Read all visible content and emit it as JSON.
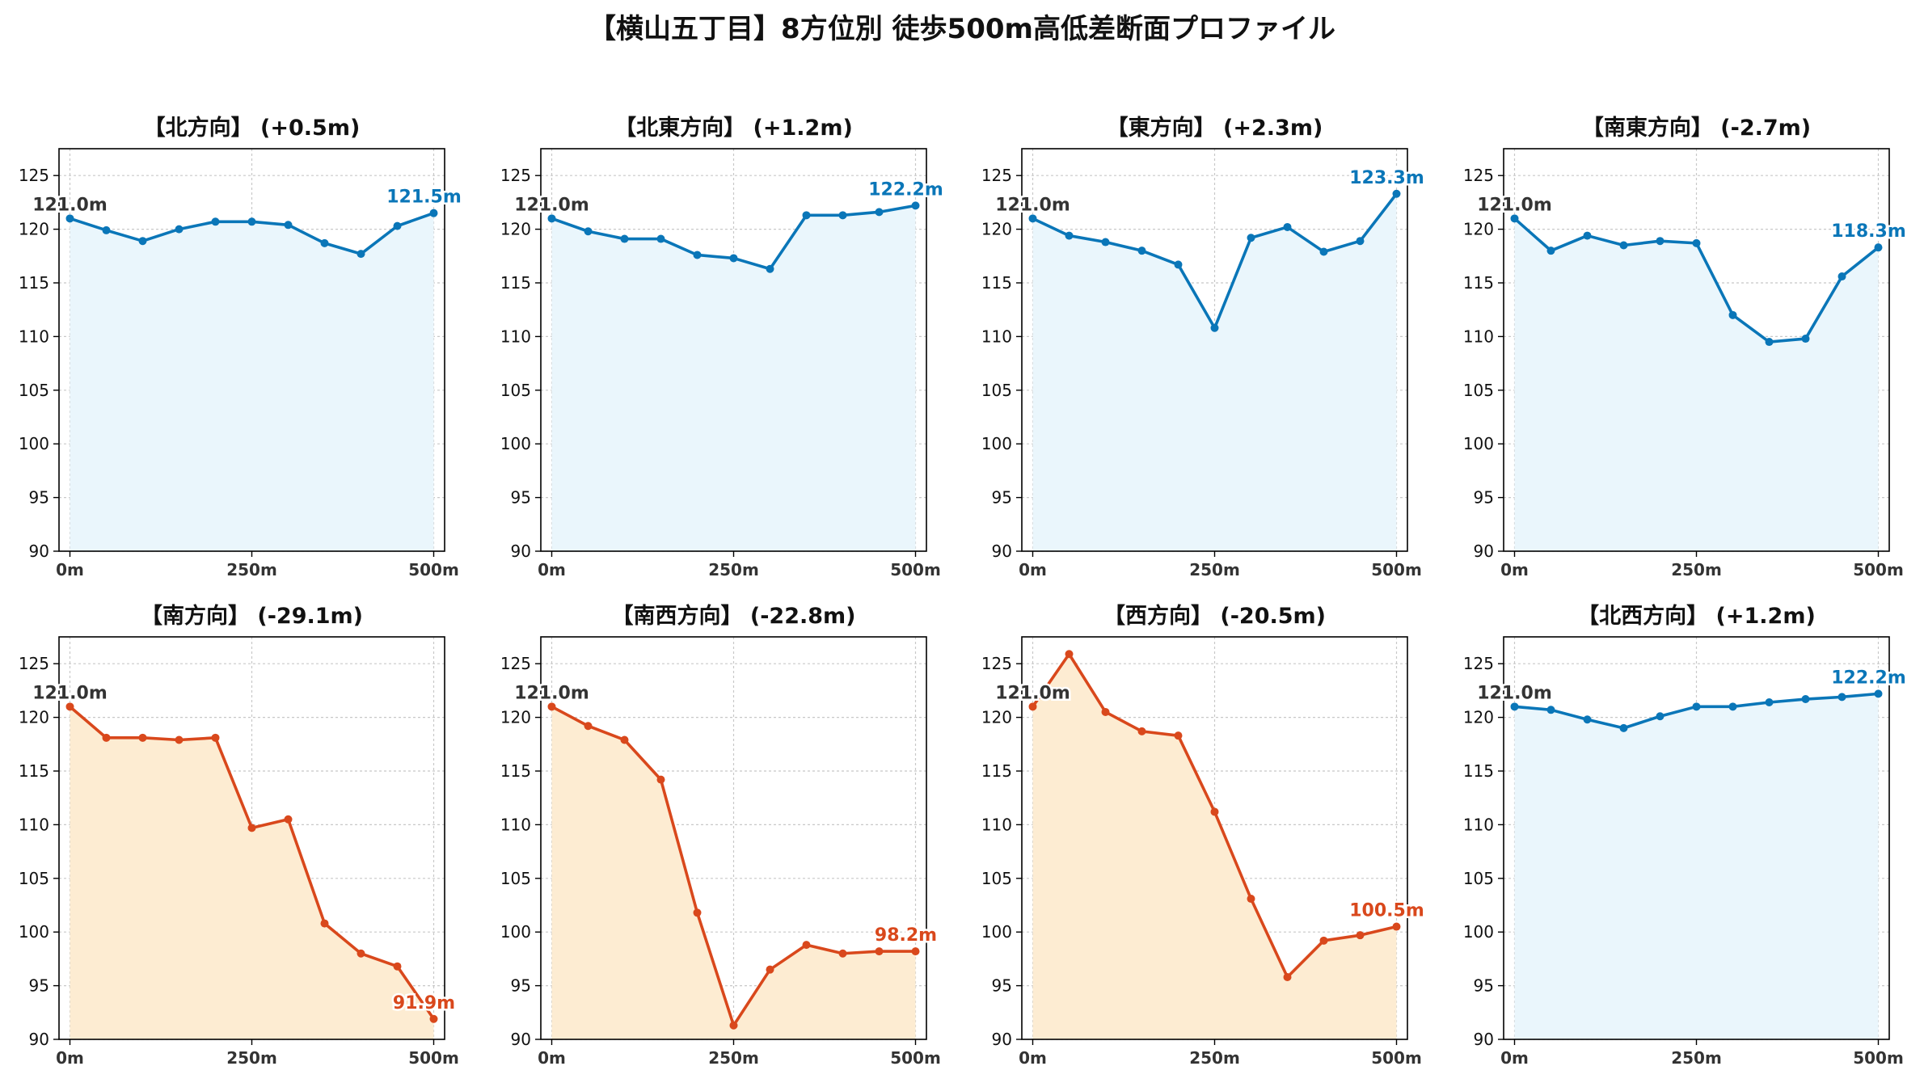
{
  "title": "【横山五丁目】8方位別 徒歩500m高低差断面プロファイル",
  "colors": {
    "up_line": "#0a76b8",
    "up_fill": "#eaf6fc",
    "down_line": "#d9481c",
    "down_fill": "#fdecd2",
    "start_label": "#333333",
    "grid": "#c8c8c8"
  },
  "chart_data": [
    {
      "type": "area",
      "title": "【北方向】 (+0.5m)",
      "trend": "up",
      "x": [
        0,
        50,
        100,
        150,
        200,
        250,
        300,
        350,
        400,
        450,
        500
      ],
      "values": [
        121.0,
        119.9,
        118.9,
        120.0,
        120.7,
        120.7,
        120.4,
        118.7,
        117.7,
        120.3,
        121.5
      ],
      "start_label": "121.0m",
      "end_label": "121.5m",
      "ylim": [
        90,
        127.5
      ],
      "xlim": [
        -15,
        515
      ],
      "yticks": [
        90,
        95,
        100,
        105,
        110,
        115,
        120,
        125
      ],
      "xticks": [
        0,
        250,
        500
      ],
      "xtick_labels": [
        "0m",
        "250m",
        "500m"
      ],
      "grid": true
    },
    {
      "type": "area",
      "title": "【北東方向】 (+1.2m)",
      "trend": "up",
      "x": [
        0,
        50,
        100,
        150,
        200,
        250,
        300,
        350,
        400,
        450,
        500
      ],
      "values": [
        121.0,
        119.8,
        119.1,
        119.1,
        117.6,
        117.3,
        116.3,
        121.3,
        121.3,
        121.6,
        122.2
      ],
      "start_label": "121.0m",
      "end_label": "122.2m",
      "ylim": [
        90,
        127.5
      ],
      "xlim": [
        -15,
        515
      ],
      "yticks": [
        90,
        95,
        100,
        105,
        110,
        115,
        120,
        125
      ],
      "xticks": [
        0,
        250,
        500
      ],
      "xtick_labels": [
        "0m",
        "250m",
        "500m"
      ],
      "grid": true
    },
    {
      "type": "area",
      "title": "【東方向】 (+2.3m)",
      "trend": "up",
      "x": [
        0,
        50,
        100,
        150,
        200,
        250,
        300,
        350,
        400,
        450,
        500
      ],
      "values": [
        121.0,
        119.4,
        118.8,
        118.0,
        116.7,
        110.8,
        119.2,
        120.2,
        117.9,
        118.9,
        123.3
      ],
      "start_label": "121.0m",
      "end_label": "123.3m",
      "ylim": [
        90,
        127.5
      ],
      "xlim": [
        -15,
        515
      ],
      "yticks": [
        90,
        95,
        100,
        105,
        110,
        115,
        120,
        125
      ],
      "xticks": [
        0,
        250,
        500
      ],
      "xtick_labels": [
        "0m",
        "250m",
        "500m"
      ],
      "grid": true
    },
    {
      "type": "area",
      "title": "【南東方向】 (-2.7m)",
      "trend": "up",
      "x": [
        0,
        50,
        100,
        150,
        200,
        250,
        300,
        350,
        400,
        450,
        500
      ],
      "values": [
        121.0,
        118.0,
        119.4,
        118.5,
        118.9,
        118.7,
        112.0,
        109.5,
        109.8,
        115.6,
        118.3
      ],
      "start_label": "121.0m",
      "end_label": "118.3m",
      "ylim": [
        90,
        127.5
      ],
      "xlim": [
        -15,
        515
      ],
      "yticks": [
        90,
        95,
        100,
        105,
        110,
        115,
        120,
        125
      ],
      "xticks": [
        0,
        250,
        500
      ],
      "xtick_labels": [
        "0m",
        "250m",
        "500m"
      ],
      "grid": true
    },
    {
      "type": "area",
      "title": "【南方向】 (-29.1m)",
      "trend": "down",
      "x": [
        0,
        50,
        100,
        150,
        200,
        250,
        300,
        350,
        400,
        450,
        500
      ],
      "values": [
        121.0,
        118.1,
        118.1,
        117.9,
        118.1,
        109.7,
        110.5,
        100.8,
        98.0,
        96.8,
        91.9
      ],
      "start_label": "121.0m",
      "end_label": "91.9m",
      "ylim": [
        90,
        127.5
      ],
      "xlim": [
        -15,
        515
      ],
      "yticks": [
        90,
        95,
        100,
        105,
        110,
        115,
        120,
        125
      ],
      "xticks": [
        0,
        250,
        500
      ],
      "xtick_labels": [
        "0m",
        "250m",
        "500m"
      ],
      "grid": true
    },
    {
      "type": "area",
      "title": "【南西方向】 (-22.8m)",
      "trend": "down",
      "x": [
        0,
        50,
        100,
        150,
        200,
        250,
        300,
        350,
        400,
        450,
        500
      ],
      "values": [
        121.0,
        119.2,
        117.9,
        114.2,
        101.8,
        91.3,
        96.5,
        98.8,
        98.0,
        98.2,
        98.2
      ],
      "start_label": "121.0m",
      "end_label": "98.2m",
      "ylim": [
        90,
        127.5
      ],
      "xlim": [
        -15,
        515
      ],
      "yticks": [
        90,
        95,
        100,
        105,
        110,
        115,
        120,
        125
      ],
      "xticks": [
        0,
        250,
        500
      ],
      "xtick_labels": [
        "0m",
        "250m",
        "500m"
      ],
      "grid": true
    },
    {
      "type": "area",
      "title": "【西方向】 (-20.5m)",
      "trend": "down",
      "x": [
        0,
        50,
        100,
        150,
        200,
        250,
        300,
        350,
        400,
        450,
        500
      ],
      "values": [
        121.0,
        125.9,
        120.5,
        118.7,
        118.3,
        111.2,
        103.1,
        95.8,
        99.2,
        99.7,
        100.5
      ],
      "start_label": "121.0m",
      "end_label": "100.5m",
      "ylim": [
        90,
        127.5
      ],
      "xlim": [
        -15,
        515
      ],
      "yticks": [
        90,
        95,
        100,
        105,
        110,
        115,
        120,
        125
      ],
      "xticks": [
        0,
        250,
        500
      ],
      "xtick_labels": [
        "0m",
        "250m",
        "500m"
      ],
      "grid": true
    },
    {
      "type": "area",
      "title": "【北西方向】 (+1.2m)",
      "trend": "up",
      "x": [
        0,
        50,
        100,
        150,
        200,
        250,
        300,
        350,
        400,
        450,
        500
      ],
      "values": [
        121.0,
        120.7,
        119.8,
        119.0,
        120.1,
        121.0,
        121.0,
        121.4,
        121.7,
        121.9,
        122.2
      ],
      "start_label": "121.0m",
      "end_label": "122.2m",
      "ylim": [
        90,
        127.5
      ],
      "xlim": [
        -15,
        515
      ],
      "yticks": [
        90,
        95,
        100,
        105,
        110,
        115,
        120,
        125
      ],
      "xticks": [
        0,
        250,
        500
      ],
      "xtick_labels": [
        "0m",
        "250m",
        "500m"
      ],
      "grid": true
    }
  ]
}
